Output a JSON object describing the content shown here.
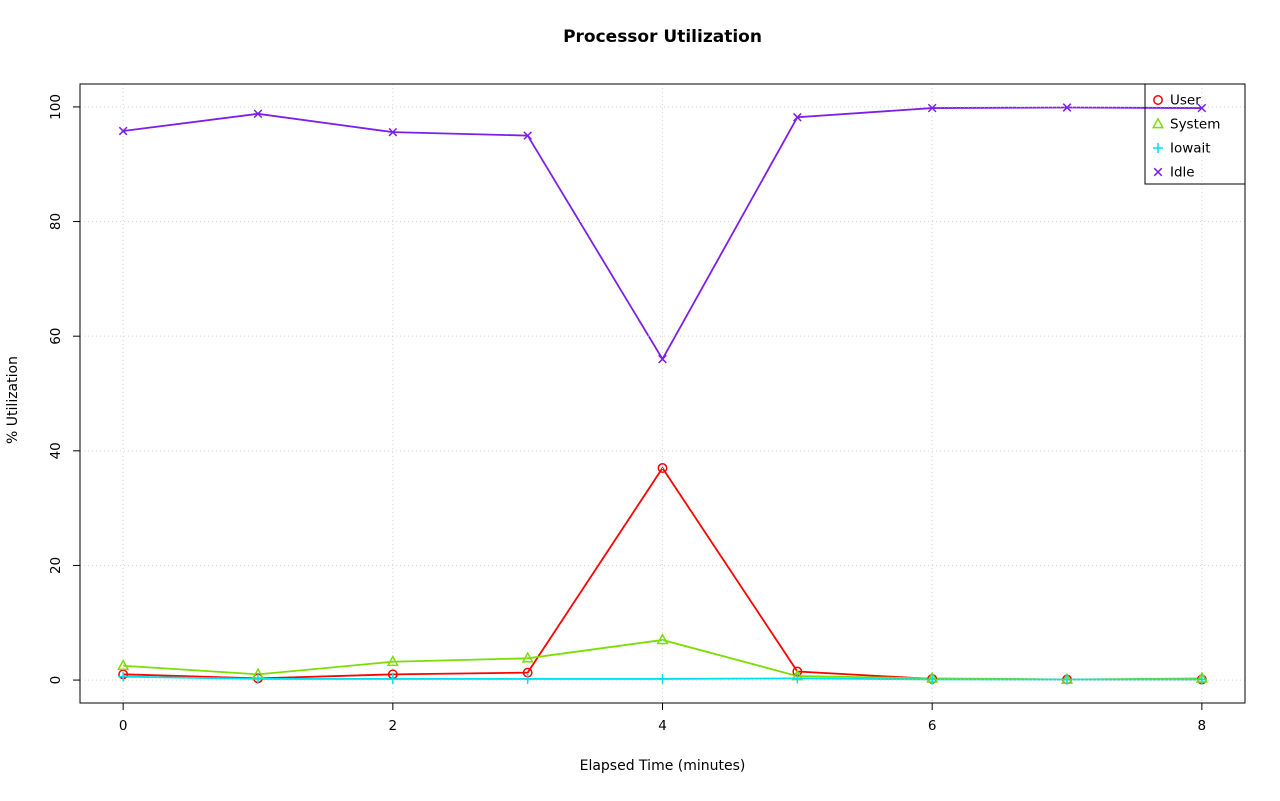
{
  "figure": {
    "background": "#ffffff",
    "box_color": "#000000",
    "text_color": "#000000"
  },
  "chart_data": {
    "type": "line",
    "title": "Processor Utilization",
    "xlabel": "Elapsed Time (minutes)",
    "ylabel": "% Utilization",
    "xlim": [
      0,
      8
    ],
    "ylim": [
      0,
      100
    ],
    "x_ticks": [
      0,
      2,
      4,
      6,
      8
    ],
    "y_ticks": [
      0,
      20,
      40,
      60,
      80,
      100
    ],
    "grid": true,
    "grid_color": "#d3d3d3",
    "legend_position": "topright",
    "x": [
      0,
      1,
      2,
      3,
      4,
      5,
      6,
      7,
      8
    ],
    "series": [
      {
        "name": "User",
        "color": "#ff0000",
        "marker": "circle",
        "values": [
          1.0,
          0.3,
          1.0,
          1.3,
          37.0,
          1.5,
          0.2,
          0.1,
          0.1
        ]
      },
      {
        "name": "System",
        "color": "#7cdd00",
        "marker": "triangle",
        "values": [
          2.5,
          1.0,
          3.2,
          3.8,
          7.0,
          0.7,
          0.3,
          0.1,
          0.3
        ]
      },
      {
        "name": "Iowait",
        "color": "#00e0ee",
        "marker": "plus",
        "values": [
          0.6,
          0.2,
          0.2,
          0.2,
          0.2,
          0.3,
          0.1,
          0.1,
          0.1
        ]
      },
      {
        "name": "Idle",
        "color": "#7d1fe8",
        "marker": "x",
        "values": [
          95.8,
          98.8,
          95.6,
          95.0,
          56.0,
          98.2,
          99.8,
          99.9,
          99.8
        ]
      }
    ]
  }
}
